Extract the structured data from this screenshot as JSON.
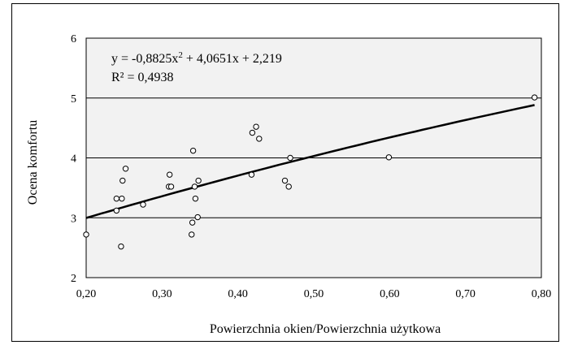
{
  "chart_data": {
    "type": "scatter",
    "title": "",
    "xlabel": "Powierzchnia  okien/Powierzchnia  użytkowa",
    "ylabel": "Ocena komfortu",
    "xlim": [
      0.2,
      0.8
    ],
    "ylim": [
      2,
      6
    ],
    "x_ticks": [
      "0,20",
      "0,30",
      "0,40",
      "0,50",
      "0,60",
      "0,70",
      "0,80"
    ],
    "y_ticks": [
      "2",
      "3",
      "4",
      "5",
      "6"
    ],
    "grid": "horizontal",
    "plot_background": "#f2f2f2",
    "marker": "open-circle",
    "points": [
      {
        "x": 0.2,
        "y": 2.72
      },
      {
        "x": 0.24,
        "y": 3.12
      },
      {
        "x": 0.24,
        "y": 3.32
      },
      {
        "x": 0.246,
        "y": 2.52
      },
      {
        "x": 0.247,
        "y": 3.32
      },
      {
        "x": 0.248,
        "y": 3.62
      },
      {
        "x": 0.252,
        "y": 3.82
      },
      {
        "x": 0.275,
        "y": 3.22
      },
      {
        "x": 0.309,
        "y": 3.52
      },
      {
        "x": 0.31,
        "y": 3.72
      },
      {
        "x": 0.312,
        "y": 3.52
      },
      {
        "x": 0.339,
        "y": 2.72
      },
      {
        "x": 0.34,
        "y": 2.92
      },
      {
        "x": 0.341,
        "y": 4.12
      },
      {
        "x": 0.343,
        "y": 3.52
      },
      {
        "x": 0.344,
        "y": 3.32
      },
      {
        "x": 0.347,
        "y": 3.01
      },
      {
        "x": 0.348,
        "y": 3.62
      },
      {
        "x": 0.418,
        "y": 3.72
      },
      {
        "x": 0.419,
        "y": 4.42
      },
      {
        "x": 0.424,
        "y": 4.52
      },
      {
        "x": 0.428,
        "y": 4.32
      },
      {
        "x": 0.462,
        "y": 3.62
      },
      {
        "x": 0.467,
        "y": 3.52
      },
      {
        "x": 0.469,
        "y": 4.0
      },
      {
        "x": 0.599,
        "y": 4.01
      },
      {
        "x": 0.791,
        "y": 5.01
      }
    ],
    "trendline": {
      "type": "polynomial",
      "coefficients": [
        -0.8825,
        4.0651,
        2.219
      ],
      "equation_main": "y = -0,8825x",
      "equation_sup": "2",
      "equation_rest": "  + 4,0651x  + 2,219",
      "r_squared": "R² = 0,4938"
    }
  }
}
